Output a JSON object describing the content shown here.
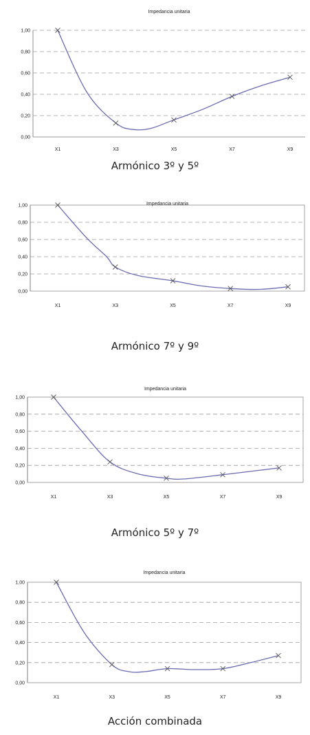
{
  "colors": {
    "line": "#6a6ab0",
    "grid": "#9a9a9a",
    "marker": "#555555"
  },
  "chart_data": [
    {
      "type": "line",
      "title": "Impedancia unitaria",
      "caption": "Armónico 3º y 5º",
      "categories": [
        "X1",
        "X3",
        "X5",
        "X7",
        "X9"
      ],
      "values": [
        1.0,
        0.13,
        0.16,
        0.38,
        0.56
      ],
      "curve": [
        [
          0,
          1.0
        ],
        [
          0.5,
          0.42
        ],
        [
          1,
          0.13
        ],
        [
          1.3,
          0.07
        ],
        [
          1.6,
          0.08
        ],
        [
          2,
          0.16
        ],
        [
          2.5,
          0.26
        ],
        [
          3,
          0.38
        ],
        [
          3.5,
          0.48
        ],
        [
          4,
          0.56
        ]
      ],
      "ylim": [
        0,
        1
      ],
      "yticks": [
        "0,00",
        "0,20",
        "0,40",
        "0,60",
        "0,80",
        "1,00"
      ],
      "grid": true,
      "legend": "none"
    },
    {
      "type": "line",
      "title": "Impedancia unitaria",
      "caption": "Armónico 7º y 9º",
      "categories": [
        "X1",
        "X3",
        "X5",
        "X7",
        "X9"
      ],
      "values": [
        1.0,
        0.28,
        0.12,
        0.03,
        0.05
      ],
      "curve": [
        [
          0,
          1.0
        ],
        [
          0.5,
          0.62
        ],
        [
          0.85,
          0.4
        ],
        [
          1,
          0.28
        ],
        [
          1.4,
          0.18
        ],
        [
          2,
          0.12
        ],
        [
          2.5,
          0.06
        ],
        [
          3,
          0.03
        ],
        [
          3.5,
          0.02
        ],
        [
          4,
          0.05
        ]
      ],
      "ylim": [
        0,
        1
      ],
      "yticks": [
        "0,00",
        "0,20",
        "0,40",
        "0,60",
        "0,80",
        "1,00"
      ],
      "grid": true,
      "legend": "none"
    },
    {
      "type": "line",
      "title": "Impedancia unitaria",
      "caption": "Armónico 5º y 7º",
      "categories": [
        "X1",
        "X3",
        "X5",
        "X7",
        "X9"
      ],
      "values": [
        1.0,
        0.24,
        0.05,
        0.09,
        0.17
      ],
      "curve": [
        [
          0,
          1.0
        ],
        [
          0.5,
          0.6
        ],
        [
          1,
          0.24
        ],
        [
          1.5,
          0.1
        ],
        [
          2,
          0.05
        ],
        [
          2.3,
          0.04
        ],
        [
          3,
          0.09
        ],
        [
          3.5,
          0.13
        ],
        [
          4,
          0.17
        ]
      ],
      "ylim": [
        0,
        1
      ],
      "yticks": [
        "0,00",
        "0,20",
        "0,40",
        "0,60",
        "0,80",
        "1,00"
      ],
      "grid": true,
      "legend": "none"
    },
    {
      "type": "line",
      "title": "Impedancia unitaria",
      "caption": "Acción combinada",
      "categories": [
        "X1",
        "X3",
        "X5",
        "X7",
        "X9"
      ],
      "values": [
        1.0,
        0.18,
        0.14,
        0.14,
        0.27
      ],
      "curve": [
        [
          0,
          1.0
        ],
        [
          0.5,
          0.5
        ],
        [
          1,
          0.18
        ],
        [
          1.3,
          0.11
        ],
        [
          1.6,
          0.11
        ],
        [
          2,
          0.14
        ],
        [
          2.5,
          0.13
        ],
        [
          3,
          0.14
        ],
        [
          3.5,
          0.2
        ],
        [
          4,
          0.27
        ]
      ],
      "ylim": [
        0,
        1
      ],
      "yticks": [
        "0,00",
        "0,20",
        "0,40",
        "0,60",
        "0,80",
        "1,00"
      ],
      "grid": true,
      "legend": "none"
    }
  ]
}
